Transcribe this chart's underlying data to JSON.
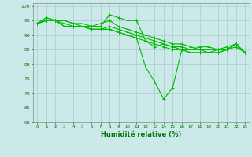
{
  "title": "",
  "xlabel": "Humidité relative (%)",
  "ylabel": "",
  "xlim": [
    -0.5,
    23.5
  ],
  "ylim": [
    60,
    101
  ],
  "yticks": [
    60,
    65,
    70,
    75,
    80,
    85,
    90,
    95,
    100
  ],
  "xticks": [
    0,
    1,
    2,
    3,
    4,
    5,
    6,
    7,
    8,
    9,
    10,
    11,
    12,
    13,
    14,
    15,
    16,
    17,
    18,
    19,
    20,
    21,
    22,
    23
  ],
  "bg_color": "#cbe9e9",
  "grid_color": "#aacccc",
  "line_color": "#00bb00",
  "lines": [
    [
      94,
      96,
      95,
      95,
      94,
      94,
      93,
      93,
      97,
      96,
      95,
      95,
      88,
      86,
      87,
      86,
      85,
      85,
      86,
      86,
      85,
      85,
      87,
      84
    ],
    [
      94,
      96,
      95,
      95,
      94,
      93,
      93,
      94,
      95,
      93,
      92,
      91,
      90,
      89,
      88,
      87,
      87,
      86,
      85,
      85,
      85,
      86,
      87,
      84
    ],
    [
      94,
      95,
      95,
      94,
      93,
      93,
      92,
      92,
      93,
      92,
      91,
      90,
      89,
      88,
      87,
      86,
      86,
      85,
      85,
      84,
      85,
      85,
      86,
      84
    ],
    [
      94,
      95,
      95,
      93,
      93,
      93,
      92,
      92,
      92,
      91,
      90,
      89,
      88,
      87,
      86,
      85,
      85,
      84,
      84,
      84,
      84,
      85,
      87,
      84
    ],
    [
      94,
      95,
      95,
      93,
      93,
      93,
      92,
      92,
      92,
      91,
      90,
      89,
      79,
      74,
      68,
      72,
      85,
      84,
      84,
      84,
      84,
      85,
      87,
      84
    ]
  ]
}
